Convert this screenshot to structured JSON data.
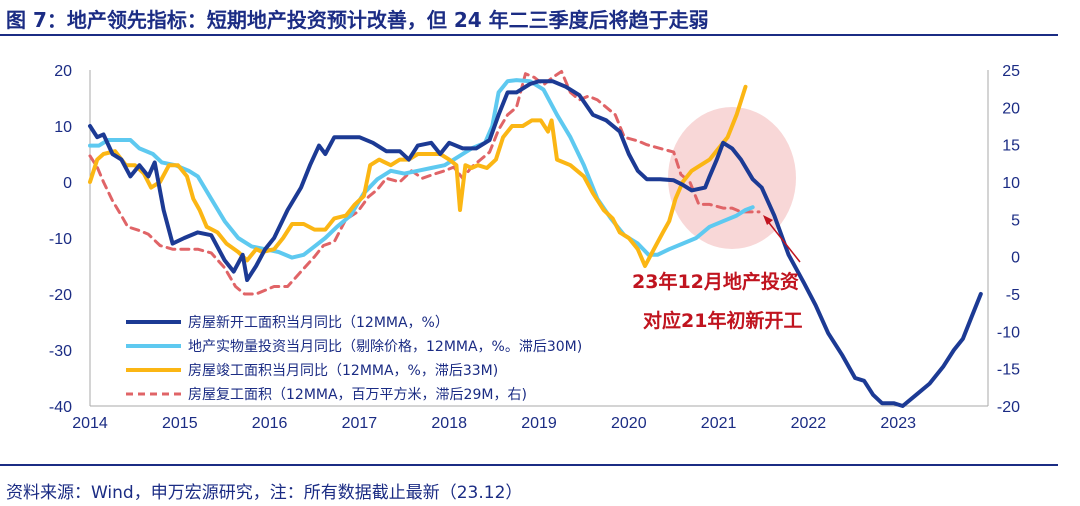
{
  "title": "图 7：地产领先指标：短期地产投资预计改善，但 24 年二三季度后将趋于走弱",
  "footer": "资料来源：Wind，申万宏源研究，注：所有数据截止最新（23.12）",
  "colors": {
    "title": "#1b2c84",
    "starts": "#1c3a94",
    "investment": "#5ec9f0",
    "completions": "#fbb614",
    "resumed": "#e06467",
    "annotation": "#c0141f",
    "highlight": "#f5c9c9"
  },
  "chart_data": {
    "type": "line",
    "x_ticks": [
      "2014",
      "2015",
      "2016",
      "2017",
      "2018",
      "2019",
      "2020",
      "2021",
      "2022",
      "2023"
    ],
    "y_left": {
      "ylim": [
        -40,
        20
      ],
      "ticks": [
        "20",
        "10",
        "0",
        "-10",
        "-20",
        "-30",
        "-40"
      ]
    },
    "y_right": {
      "ylim": [
        -20,
        25
      ],
      "ticks": [
        "25",
        "20",
        "15",
        "10",
        "5",
        "0",
        "-5",
        "-10",
        "-15",
        "-20"
      ]
    },
    "legend": [
      "房屋新开工面积当月同比（12MMA，%）",
      "地产实物量投资当月同比（剔除价格，12MMA，%。滞后30M)",
      "房屋竣工面积当月同比（12MMA，%，滞后33M)",
      "房屋复工面积（12MMA，百万平方米，滞后29M，右)"
    ],
    "annotation": [
      "23年12月地产投资",
      "对应21年初新开工"
    ],
    "series": [
      {
        "name": "房屋新开工面积当月同比（12MMA，%）",
        "axis": "left",
        "style": "solid",
        "points": [
          [
            2014.0,
            10
          ],
          [
            2014.08,
            8
          ],
          [
            2014.15,
            8.5
          ],
          [
            2014.25,
            5
          ],
          [
            2014.35,
            4
          ],
          [
            2014.45,
            1
          ],
          [
            2014.55,
            3
          ],
          [
            2014.65,
            1
          ],
          [
            2014.72,
            3.5
          ],
          [
            2014.82,
            -5
          ],
          [
            2014.92,
            -11
          ],
          [
            2015.05,
            -10
          ],
          [
            2015.2,
            -9
          ],
          [
            2015.35,
            -9.5
          ],
          [
            2015.5,
            -14
          ],
          [
            2015.6,
            -16
          ],
          [
            2015.7,
            -13
          ],
          [
            2015.75,
            -17.5
          ],
          [
            2015.85,
            -15
          ],
          [
            2015.95,
            -12
          ],
          [
            2016.05,
            -10
          ],
          [
            2016.2,
            -5
          ],
          [
            2016.35,
            -1
          ],
          [
            2016.45,
            3
          ],
          [
            2016.55,
            6.5
          ],
          [
            2016.62,
            5
          ],
          [
            2016.72,
            8
          ],
          [
            2016.85,
            8
          ],
          [
            2017.0,
            8
          ],
          [
            2017.15,
            7
          ],
          [
            2017.3,
            5.5
          ],
          [
            2017.45,
            5.5
          ],
          [
            2017.55,
            4
          ],
          [
            2017.65,
            6.5
          ],
          [
            2017.8,
            7
          ],
          [
            2017.9,
            5
          ],
          [
            2018.0,
            7
          ],
          [
            2018.15,
            6
          ],
          [
            2018.3,
            6
          ],
          [
            2018.45,
            7.5
          ],
          [
            2018.55,
            12
          ],
          [
            2018.65,
            16
          ],
          [
            2018.75,
            16
          ],
          [
            2018.9,
            17.5
          ],
          [
            2019.0,
            18
          ],
          [
            2019.15,
            18
          ],
          [
            2019.3,
            17
          ],
          [
            2019.45,
            15.5
          ],
          [
            2019.6,
            12
          ],
          [
            2019.75,
            11
          ],
          [
            2019.9,
            9
          ],
          [
            2020.0,
            5
          ],
          [
            2020.1,
            2
          ],
          [
            2020.2,
            0.5
          ],
          [
            2020.35,
            0.5
          ],
          [
            2020.5,
            0.3
          ],
          [
            2020.6,
            -0.5
          ],
          [
            2020.7,
            -1.5
          ],
          [
            2020.85,
            -1
          ],
          [
            2020.9,
            1
          ],
          [
            2020.98,
            4
          ],
          [
            2021.05,
            7
          ],
          [
            2021.15,
            6
          ],
          [
            2021.25,
            4
          ],
          [
            2021.38,
            0.5
          ],
          [
            2021.48,
            -1
          ],
          [
            2021.62,
            -6
          ],
          [
            2021.78,
            -13
          ],
          [
            2021.95,
            -18
          ],
          [
            2022.08,
            -22
          ],
          [
            2022.22,
            -27
          ],
          [
            2022.38,
            -31
          ],
          [
            2022.52,
            -35
          ],
          [
            2022.62,
            -35.5
          ],
          [
            2022.72,
            -38
          ],
          [
            2022.82,
            -39.5
          ],
          [
            2022.95,
            -39.5
          ],
          [
            2023.05,
            -40
          ],
          [
            2023.2,
            -38
          ],
          [
            2023.35,
            -36
          ],
          [
            2023.5,
            -33
          ],
          [
            2023.62,
            -30
          ],
          [
            2023.72,
            -28
          ],
          [
            2023.82,
            -24
          ],
          [
            2023.92,
            -20
          ]
        ]
      },
      {
        "name": "地产实物量投资当月同比（剔除价格，12MMA，%。滞后30M)",
        "axis": "left",
        "style": "solid",
        "points": [
          [
            2014.0,
            6.5
          ],
          [
            2014.1,
            6.5
          ],
          [
            2014.2,
            7.5
          ],
          [
            2014.35,
            7.5
          ],
          [
            2014.45,
            7.5
          ],
          [
            2014.55,
            6
          ],
          [
            2014.7,
            5
          ],
          [
            2014.8,
            3.5
          ],
          [
            2014.95,
            3
          ],
          [
            2015.1,
            2
          ],
          [
            2015.2,
            1
          ],
          [
            2015.35,
            -3
          ],
          [
            2015.5,
            -7
          ],
          [
            2015.65,
            -10
          ],
          [
            2015.8,
            -11.5
          ],
          [
            2015.95,
            -12
          ],
          [
            2016.1,
            -12.5
          ],
          [
            2016.25,
            -13.5
          ],
          [
            2016.38,
            -13
          ],
          [
            2016.5,
            -11.5
          ],
          [
            2016.62,
            -10
          ],
          [
            2016.75,
            -8
          ],
          [
            2016.9,
            -6
          ],
          [
            2017.05,
            -2
          ],
          [
            2017.2,
            0.5
          ],
          [
            2017.35,
            2
          ],
          [
            2017.5,
            1.5
          ],
          [
            2017.65,
            2
          ],
          [
            2017.8,
            2.5
          ],
          [
            2017.95,
            3
          ],
          [
            2018.1,
            4.5
          ],
          [
            2018.25,
            6
          ],
          [
            2018.4,
            7
          ],
          [
            2018.48,
            10
          ],
          [
            2018.55,
            16
          ],
          [
            2018.65,
            18
          ],
          [
            2018.75,
            18.2
          ],
          [
            2018.9,
            18
          ],
          [
            2019.05,
            16.5
          ],
          [
            2019.2,
            12
          ],
          [
            2019.35,
            8
          ],
          [
            2019.5,
            3
          ],
          [
            2019.65,
            -3
          ],
          [
            2019.8,
            -6.5
          ],
          [
            2019.95,
            -9.5
          ],
          [
            2020.1,
            -11
          ],
          [
            2020.22,
            -13
          ],
          [
            2020.32,
            -13
          ],
          [
            2020.45,
            -12
          ],
          [
            2020.6,
            -11
          ],
          [
            2020.75,
            -10
          ],
          [
            2020.9,
            -8
          ],
          [
            2021.05,
            -7
          ],
          [
            2021.2,
            -6
          ],
          [
            2021.3,
            -5
          ],
          [
            2021.38,
            -4.5
          ]
        ]
      },
      {
        "name": "房屋竣工面积当月同比（12MMA，%，滞后33M)",
        "axis": "left",
        "style": "solid",
        "points": [
          [
            2014.0,
            0
          ],
          [
            2014.08,
            4
          ],
          [
            2014.15,
            5
          ],
          [
            2014.28,
            5.5
          ],
          [
            2014.4,
            3
          ],
          [
            2014.5,
            3
          ],
          [
            2014.6,
            1.5
          ],
          [
            2014.68,
            -1
          ],
          [
            2014.78,
            0
          ],
          [
            2014.88,
            3
          ],
          [
            2014.98,
            3
          ],
          [
            2015.08,
            1
          ],
          [
            2015.15,
            -3
          ],
          [
            2015.22,
            -5
          ],
          [
            2015.3,
            -8
          ],
          [
            2015.42,
            -9
          ],
          [
            2015.52,
            -11
          ],
          [
            2015.65,
            -12.5
          ],
          [
            2015.75,
            -14
          ],
          [
            2015.85,
            -12
          ],
          [
            2015.92,
            -12.5
          ],
          [
            2016.05,
            -12
          ],
          [
            2016.15,
            -10
          ],
          [
            2016.25,
            -7.5
          ],
          [
            2016.38,
            -7.5
          ],
          [
            2016.5,
            -8.5
          ],
          [
            2016.62,
            -8.5
          ],
          [
            2016.72,
            -6.5
          ],
          [
            2016.85,
            -6
          ],
          [
            2016.95,
            -4
          ],
          [
            2017.05,
            -2.5
          ],
          [
            2017.12,
            3
          ],
          [
            2017.22,
            4
          ],
          [
            2017.35,
            3
          ],
          [
            2017.45,
            4
          ],
          [
            2017.55,
            4
          ],
          [
            2017.65,
            5
          ],
          [
            2017.78,
            5
          ],
          [
            2017.9,
            5
          ],
          [
            2018.0,
            4
          ],
          [
            2018.08,
            3
          ],
          [
            2018.12,
            -5
          ],
          [
            2018.18,
            3
          ],
          [
            2018.25,
            2.5
          ],
          [
            2018.32,
            3
          ],
          [
            2018.42,
            2.5
          ],
          [
            2018.52,
            4
          ],
          [
            2018.6,
            8
          ],
          [
            2018.7,
            10
          ],
          [
            2018.82,
            10
          ],
          [
            2018.92,
            11
          ],
          [
            2019.02,
            11
          ],
          [
            2019.1,
            9
          ],
          [
            2019.14,
            11
          ],
          [
            2019.2,
            4
          ],
          [
            2019.35,
            3
          ],
          [
            2019.5,
            1
          ],
          [
            2019.6,
            -2
          ],
          [
            2019.72,
            -5
          ],
          [
            2019.82,
            -6.5
          ],
          [
            2019.9,
            -9
          ],
          [
            2020.0,
            -10
          ],
          [
            2020.1,
            -12
          ],
          [
            2020.18,
            -15
          ],
          [
            2020.28,
            -12
          ],
          [
            2020.38,
            -9
          ],
          [
            2020.45,
            -7
          ],
          [
            2020.52,
            -3
          ],
          [
            2020.6,
            0
          ],
          [
            2020.7,
            2
          ],
          [
            2020.8,
            3
          ],
          [
            2020.9,
            4
          ],
          [
            2021.0,
            6
          ],
          [
            2021.1,
            8
          ],
          [
            2021.2,
            12
          ],
          [
            2021.3,
            17
          ]
        ]
      },
      {
        "name": "房屋复工面积（12MMA，百万平方米，滞后29M，右)",
        "axis": "right",
        "style": "dashed",
        "points": [
          [
            2014.0,
            13.5
          ],
          [
            2014.08,
            12
          ],
          [
            2014.15,
            10
          ],
          [
            2014.25,
            7.5
          ],
          [
            2014.35,
            5.5
          ],
          [
            2014.42,
            4
          ],
          [
            2014.55,
            3.5
          ],
          [
            2014.65,
            3
          ],
          [
            2014.78,
            1.5
          ],
          [
            2014.92,
            1
          ],
          [
            2015.05,
            1
          ],
          [
            2015.2,
            1
          ],
          [
            2015.35,
            0.5
          ],
          [
            2015.5,
            -1.5
          ],
          [
            2015.62,
            -4
          ],
          [
            2015.72,
            -5
          ],
          [
            2015.85,
            -5
          ],
          [
            2015.95,
            -4.5
          ],
          [
            2016.05,
            -4
          ],
          [
            2016.2,
            -4
          ],
          [
            2016.35,
            -2
          ],
          [
            2016.5,
            0
          ],
          [
            2016.6,
            1.5
          ],
          [
            2016.72,
            2
          ],
          [
            2016.85,
            5
          ],
          [
            2016.98,
            6
          ],
          [
            2017.1,
            8
          ],
          [
            2017.2,
            9
          ],
          [
            2017.3,
            10.5
          ],
          [
            2017.45,
            10
          ],
          [
            2017.58,
            11.5
          ],
          [
            2017.7,
            10.5
          ],
          [
            2017.82,
            11
          ],
          [
            2017.95,
            11.5
          ],
          [
            2018.05,
            12
          ],
          [
            2018.15,
            10.5
          ],
          [
            2018.25,
            12
          ],
          [
            2018.35,
            13
          ],
          [
            2018.45,
            14
          ],
          [
            2018.55,
            17
          ],
          [
            2018.65,
            19
          ],
          [
            2018.75,
            20
          ],
          [
            2018.85,
            24.5
          ],
          [
            2018.95,
            24
          ],
          [
            2019.05,
            23
          ],
          [
            2019.15,
            24
          ],
          [
            2019.25,
            24.8
          ],
          [
            2019.35,
            22
          ],
          [
            2019.45,
            21
          ],
          [
            2019.55,
            21.5
          ],
          [
            2019.65,
            21
          ],
          [
            2019.75,
            20
          ],
          [
            2019.85,
            19
          ],
          [
            2019.95,
            16
          ],
          [
            2020.1,
            15.5
          ],
          [
            2020.2,
            15
          ],
          [
            2020.35,
            14.5
          ],
          [
            2020.5,
            14
          ],
          [
            2020.58,
            11
          ],
          [
            2020.68,
            10
          ],
          [
            2020.78,
            7
          ],
          [
            2020.9,
            7
          ],
          [
            2021.05,
            6.5
          ],
          [
            2021.15,
            6.5
          ],
          [
            2021.25,
            6
          ],
          [
            2021.35,
            6
          ],
          [
            2021.45,
            6
          ]
        ]
      }
    ]
  }
}
